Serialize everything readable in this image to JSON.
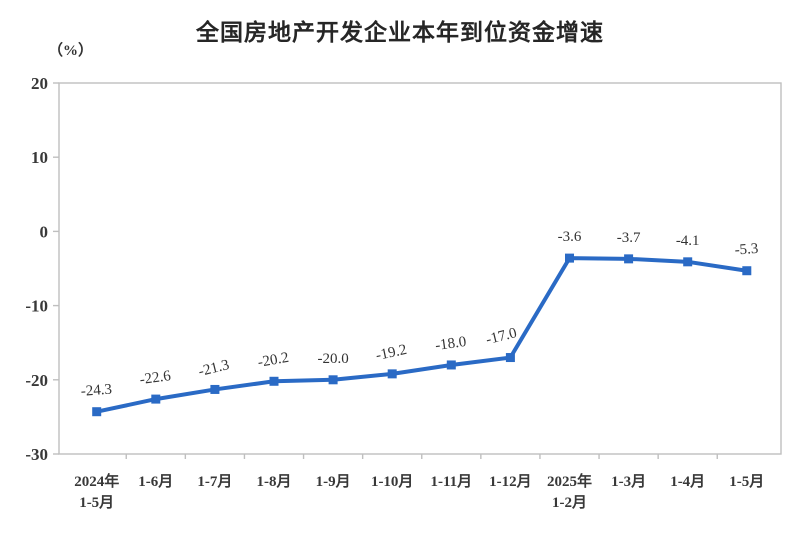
{
  "chart_data": {
    "type": "line",
    "title": "全国房地产开发企业本年到位资金增速",
    "ylabel": "（%）",
    "xlabel": "",
    "categories": [
      "2024年1-5月",
      "1-6月",
      "1-7月",
      "1-8月",
      "1-9月",
      "1-10月",
      "1-11月",
      "1-12月",
      "2025年1-2月",
      "1-3月",
      "1-4月",
      "1-5月"
    ],
    "tick_labels": [
      [
        "2024年",
        "1-5月"
      ],
      [
        "1-6月"
      ],
      [
        "1-7月"
      ],
      [
        "1-8月"
      ],
      [
        "1-9月"
      ],
      [
        "1-10月"
      ],
      [
        "1-11月"
      ],
      [
        "1-12月"
      ],
      [
        "2025年",
        "1-2月"
      ],
      [
        "1-3月"
      ],
      [
        "1-4月"
      ],
      [
        "1-5月"
      ]
    ],
    "values": [
      -24.3,
      -22.6,
      -21.3,
      -20.2,
      -20.0,
      -19.2,
      -18.0,
      -17.0,
      -3.6,
      -3.7,
      -4.1,
      -5.3
    ],
    "data_labels": [
      "-24.3",
      "-22.6",
      "-21.3",
      "-20.2",
      "-20.0",
      "-19.2",
      "-18.0",
      "-17.0",
      "-3.6",
      "-3.7",
      "-4.1",
      "-5.3"
    ],
    "y_ticks": [
      20,
      10,
      0,
      -10,
      -20,
      -30
    ],
    "ylim": [
      -30,
      20
    ],
    "grid": false,
    "legend": "none",
    "series_color": "#2A6AC5",
    "axis_color": "#BFBFBF",
    "text_color": "#383838",
    "marker": "square",
    "label_rotations": [
      -4,
      -8,
      -14,
      -10,
      0,
      -12,
      -8,
      -14,
      0,
      0,
      0,
      -4
    ],
    "label_offsets_x": [
      0,
      0,
      0,
      0,
      0,
      0,
      0,
      -8,
      0,
      0,
      0,
      0
    ]
  }
}
